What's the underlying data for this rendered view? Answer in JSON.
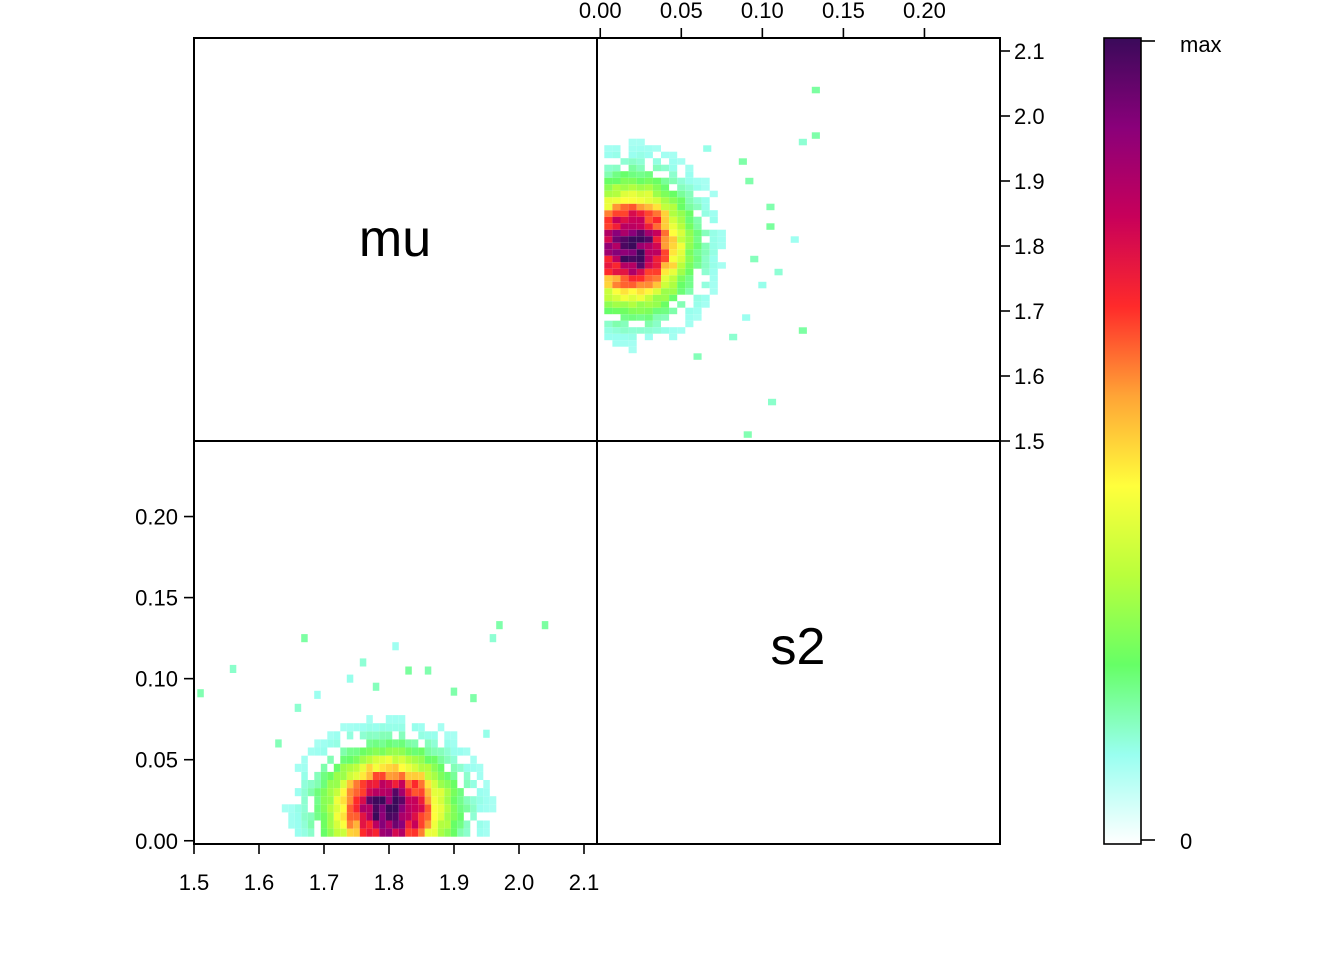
{
  "chart_data": {
    "type": "heatmap",
    "variables": [
      "mu",
      "s2"
    ],
    "diagonal_labels": [
      "mu",
      "s2"
    ],
    "axes": {
      "mu": {
        "range": [
          1.5,
          2.12
        ],
        "ticks": [
          "1.5",
          "1.6",
          "1.7",
          "1.8",
          "1.9",
          "2.0",
          "2.1"
        ]
      },
      "s2": {
        "range": [
          -0.002,
          0.2466
        ],
        "ticks": [
          "0.00",
          "0.05",
          "0.10",
          "0.15",
          "0.20"
        ]
      }
    },
    "density": {
      "center": {
        "mu": 1.8,
        "s2": 0.02
      },
      "spread": {
        "mu": 0.055,
        "s2": 0.02
      },
      "bin_size": {
        "mu": 0.01,
        "s2": 0.005
      },
      "outliers": [
        {
          "mu": 1.51,
          "s2": 0.091
        },
        {
          "mu": 1.56,
          "s2": 0.106
        },
        {
          "mu": 1.67,
          "s2": 0.125
        },
        {
          "mu": 1.81,
          "s2": 0.12
        },
        {
          "mu": 1.96,
          "s2": 0.125
        },
        {
          "mu": 1.97,
          "s2": 0.133
        },
        {
          "mu": 2.04,
          "s2": 0.133
        },
        {
          "mu": 1.76,
          "s2": 0.11
        },
        {
          "mu": 1.83,
          "s2": 0.105
        },
        {
          "mu": 1.86,
          "s2": 0.105
        },
        {
          "mu": 1.93,
          "s2": 0.088
        },
        {
          "mu": 1.63,
          "s2": 0.06
        },
        {
          "mu": 1.69,
          "s2": 0.09
        },
        {
          "mu": 1.74,
          "s2": 0.1
        },
        {
          "mu": 1.66,
          "s2": 0.082
        },
        {
          "mu": 1.95,
          "s2": 0.066
        },
        {
          "mu": 1.9,
          "s2": 0.092
        },
        {
          "mu": 1.78,
          "s2": 0.095
        }
      ]
    },
    "colorbar": {
      "labels": {
        "min": "0",
        "max": "max"
      },
      "colors": [
        "#ffffff",
        "#99fff0",
        "#66ff66",
        "#b9ff3c",
        "#ffff3c",
        "#ffa436",
        "#ff2a2a",
        "#c8005a",
        "#8a007a",
        "#3a0a5a"
      ]
    }
  }
}
